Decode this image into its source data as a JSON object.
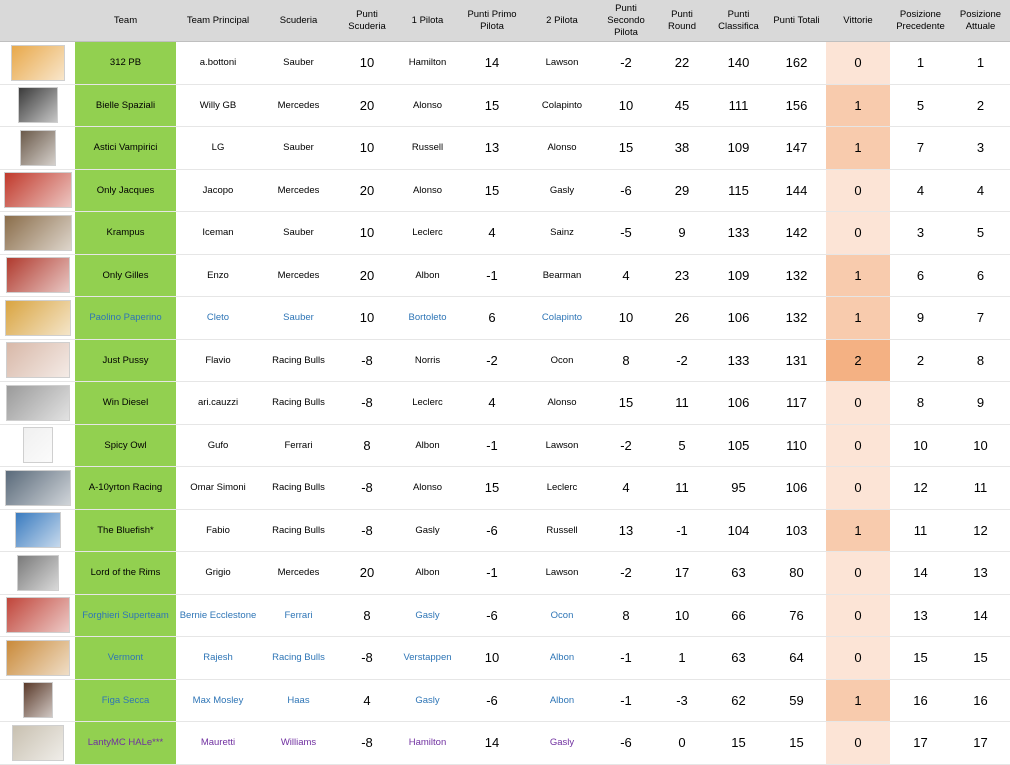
{
  "headers": {
    "team": "Team",
    "principal": "Team Principal",
    "scuderia": "Scuderia",
    "punti_scuderia": "Punti Scuderia",
    "pilota1": "1 Pilota",
    "punti_primo": "Punti Primo Pilota",
    "pilota2": "2 Pilota",
    "punti_secondo": "Punti Secondo Pilota",
    "punti_round": "Punti Round",
    "punti_classifica": "Punti Classifica",
    "punti_totali": "Punti Totali",
    "vittorie": "Vittorie",
    "pos_prec": "Posizione Precedente",
    "pos_att": "Posizione Attuale"
  },
  "colors": {
    "team_column": "#92d050",
    "header_bg": "#d9d9d9",
    "link_blue": "#2e75b6",
    "purple": "#7030a0",
    "vittorie_0": "#fce4d6",
    "vittorie_1": "#f8cbad",
    "vittorie_2": "#f4b183"
  },
  "rows": [
    {
      "team": "312 PB",
      "principal": "a.bottoni",
      "scuderia": "Sauber",
      "punti_scuderia": "10",
      "pilota1": "Hamilton",
      "punti_primo": "14",
      "pilota2": "Lawson",
      "punti_secondo": "-2",
      "punti_round": "22",
      "punti_classifica": "140",
      "punti_totali": "162",
      "vittorie": "0",
      "pos_prec": "1",
      "pos_att": "1",
      "style": "",
      "thumb_color": "#e8a84a"
    },
    {
      "team": "Bielle Spaziali",
      "principal": "Willy GB",
      "scuderia": "Mercedes",
      "punti_scuderia": "20",
      "pilota1": "Alonso",
      "punti_primo": "15",
      "pilota2": "Colapinto",
      "punti_secondo": "10",
      "punti_round": "45",
      "punti_classifica": "111",
      "punti_totali": "156",
      "vittorie": "1",
      "pos_prec": "5",
      "pos_att": "2",
      "style": "",
      "thumb_color": "#3a3a3a"
    },
    {
      "team": "Astici Vampirici",
      "principal": "LG",
      "scuderia": "Sauber",
      "punti_scuderia": "10",
      "pilota1": "Russell",
      "punti_primo": "13",
      "pilota2": "Alonso",
      "punti_secondo": "15",
      "punti_round": "38",
      "punti_classifica": "109",
      "punti_totali": "147",
      "vittorie": "1",
      "pos_prec": "7",
      "pos_att": "3",
      "style": "",
      "thumb_color": "#6b5a4a"
    },
    {
      "team": "Only Jacques",
      "principal": "Jacopo",
      "scuderia": "Mercedes",
      "punti_scuderia": "20",
      "pilota1": "Alonso",
      "punti_primo": "15",
      "pilota2": "Gasly",
      "punti_secondo": "-6",
      "punti_round": "29",
      "punti_classifica": "115",
      "punti_totali": "144",
      "vittorie": "0",
      "pos_prec": "4",
      "pos_att": "4",
      "style": "",
      "thumb_color": "#c0392b"
    },
    {
      "team": "Krampus",
      "principal": "Iceman",
      "scuderia": "Sauber",
      "punti_scuderia": "10",
      "pilota1": "Leclerc",
      "punti_primo": "4",
      "pilota2": "Sainz",
      "punti_secondo": "-5",
      "punti_round": "9",
      "punti_classifica": "133",
      "punti_totali": "142",
      "vittorie": "0",
      "pos_prec": "3",
      "pos_att": "5",
      "style": "",
      "thumb_color": "#8a6d4a"
    },
    {
      "team": "Only Gilles",
      "principal": "Enzo",
      "scuderia": "Mercedes",
      "punti_scuderia": "20",
      "pilota1": "Albon",
      "punti_primo": "-1",
      "pilota2": "Bearman",
      "punti_secondo": "4",
      "punti_round": "23",
      "punti_classifica": "109",
      "punti_totali": "132",
      "vittorie": "1",
      "pos_prec": "6",
      "pos_att": "6",
      "style": "",
      "thumb_color": "#b03a2e"
    },
    {
      "team": "Paolino Paperino",
      "principal": "Cleto",
      "scuderia": "Sauber",
      "punti_scuderia": "10",
      "pilota1": "Bortoleto",
      "punti_primo": "6",
      "pilota2": "Colapinto",
      "punti_secondo": "10",
      "punti_round": "26",
      "punti_classifica": "106",
      "punti_totali": "132",
      "vittorie": "1",
      "pos_prec": "9",
      "pos_att": "7",
      "style": "blue",
      "thumb_color": "#d9a441"
    },
    {
      "team": "Just Pussy",
      "principal": "Flavio",
      "scuderia": "Racing Bulls",
      "punti_scuderia": "-8",
      "pilota1": "Norris",
      "punti_primo": "-2",
      "pilota2": "Ocon",
      "punti_secondo": "8",
      "punti_round": "-2",
      "punti_classifica": "133",
      "punti_totali": "131",
      "vittorie": "2",
      "pos_prec": "2",
      "pos_att": "8",
      "style": "",
      "thumb_color": "#d8b8a8"
    },
    {
      "team": "Win Diesel",
      "principal": "ari.cauzzi",
      "scuderia": "Racing Bulls",
      "punti_scuderia": "-8",
      "pilota1": "Leclerc",
      "punti_primo": "4",
      "pilota2": "Alonso",
      "punti_secondo": "15",
      "punti_round": "11",
      "punti_classifica": "106",
      "punti_totali": "117",
      "vittorie": "0",
      "pos_prec": "8",
      "pos_att": "9",
      "style": "",
      "thumb_color": "#9a9a9a"
    },
    {
      "team": "Spicy Owl",
      "principal": "Gufo",
      "scuderia": "Ferrari",
      "punti_scuderia": "8",
      "pilota1": "Albon",
      "punti_primo": "-1",
      "pilota2": "Lawson",
      "punti_secondo": "-2",
      "punti_round": "5",
      "punti_classifica": "105",
      "punti_totali": "110",
      "vittorie": "0",
      "pos_prec": "10",
      "pos_att": "10",
      "style": "",
      "thumb_color": "#f0f0f0"
    },
    {
      "team": "A-10yrton Racing",
      "principal": "Omar Simoni",
      "scuderia": "Racing Bulls",
      "punti_scuderia": "-8",
      "pilota1": "Alonso",
      "punti_primo": "15",
      "pilota2": "Leclerc",
      "punti_secondo": "4",
      "punti_round": "11",
      "punti_classifica": "95",
      "punti_totali": "106",
      "vittorie": "0",
      "pos_prec": "12",
      "pos_att": "11",
      "style": "",
      "thumb_color": "#5a6a7a"
    },
    {
      "team": "The Bluefish*",
      "principal": "Fabio",
      "scuderia": "Racing Bulls",
      "punti_scuderia": "-8",
      "pilota1": "Gasly",
      "punti_primo": "-6",
      "pilota2": "Russell",
      "punti_secondo": "13",
      "punti_round": "-1",
      "punti_classifica": "104",
      "punti_totali": "103",
      "vittorie": "1",
      "pos_prec": "11",
      "pos_att": "12",
      "style": "",
      "thumb_color": "#3a7bbf"
    },
    {
      "team": "Lord of the Rims",
      "principal": "Grigio",
      "scuderia": "Mercedes",
      "punti_scuderia": "20",
      "pilota1": "Albon",
      "punti_primo": "-1",
      "pilota2": "Lawson",
      "punti_secondo": "-2",
      "punti_round": "17",
      "punti_classifica": "63",
      "punti_totali": "80",
      "vittorie": "0",
      "pos_prec": "14",
      "pos_att": "13",
      "style": "",
      "thumb_color": "#7a7a7a"
    },
    {
      "team": "Forghieri Superteam",
      "principal": "Bernie Ecclestone",
      "scuderia": "Ferrari",
      "punti_scuderia": "8",
      "pilota1": "Gasly",
      "punti_primo": "-6",
      "pilota2": "Ocon",
      "punti_secondo": "8",
      "punti_round": "10",
      "punti_classifica": "66",
      "punti_totali": "76",
      "vittorie": "0",
      "pos_prec": "13",
      "pos_att": "14",
      "style": "blue",
      "thumb_color": "#c0453a"
    },
    {
      "team": "Vermont",
      "principal": "Rajesh",
      "scuderia": "Racing Bulls",
      "punti_scuderia": "-8",
      "pilota1": "Verstappen",
      "punti_primo": "10",
      "pilota2": "Albon",
      "punti_secondo": "-1",
      "punti_round": "1",
      "punti_classifica": "63",
      "punti_totali": "64",
      "vittorie": "0",
      "pos_prec": "15",
      "pos_att": "15",
      "style": "blue",
      "thumb_color": "#c98a3a"
    },
    {
      "team": "Figa Secca",
      "principal": "Max Mosley",
      "scuderia": "Haas",
      "punti_scuderia": "4",
      "pilota1": "Gasly",
      "punti_primo": "-6",
      "pilota2": "Albon",
      "punti_secondo": "-1",
      "punti_round": "-3",
      "punti_classifica": "62",
      "punti_totali": "59",
      "vittorie": "1",
      "pos_prec": "16",
      "pos_att": "16",
      "style": "blue",
      "thumb_color": "#5a3a2a"
    },
    {
      "team": "LantyMC HALe***",
      "principal": "Mauretti",
      "scuderia": "Williams",
      "punti_scuderia": "-8",
      "pilota1": "Hamilton",
      "punti_primo": "14",
      "pilota2": "Gasly",
      "punti_secondo": "-6",
      "punti_round": "0",
      "punti_classifica": "15",
      "punti_totali": "15",
      "vittorie": "0",
      "pos_prec": "17",
      "pos_att": "17",
      "style": "purple",
      "thumb_color": "#c8c0b0"
    }
  ]
}
